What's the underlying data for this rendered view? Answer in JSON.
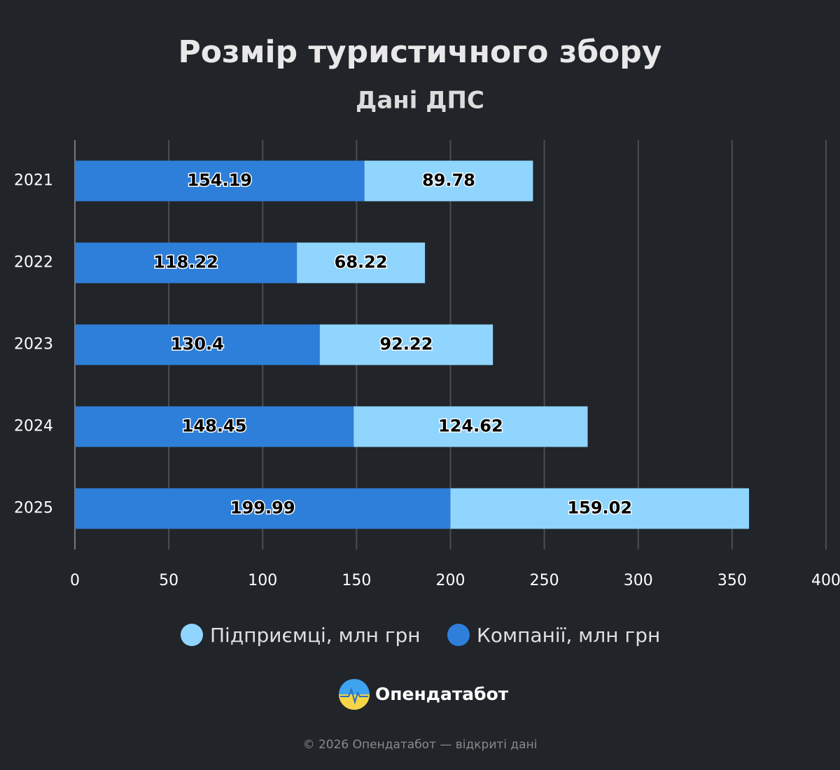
{
  "chart_data": {
    "type": "stacked-bar-horizontal",
    "title": "Розмір туристичного збору",
    "subtitle": "Дані ДПС",
    "categories": [
      "2021",
      "2022",
      "2023",
      "2024",
      "2025"
    ],
    "series": [
      {
        "name": "Компанії, млн грн",
        "color": "#2e7fd9",
        "values": [
          154.19,
          118.22,
          130.4,
          148.45,
          199.99
        ]
      },
      {
        "name": "Підприємці, млн грн",
        "color": "#8fd5fe",
        "values": [
          89.78,
          68.22,
          92.22,
          124.62,
          159.02
        ]
      }
    ],
    "xlim": [
      0,
      400
    ],
    "xticks": [
      0,
      50,
      100,
      150,
      200,
      250,
      300,
      350,
      400
    ],
    "grid": true
  },
  "brand": "Опендатабот",
  "footer": "© 2026 Опендатабот — відкриті дані"
}
